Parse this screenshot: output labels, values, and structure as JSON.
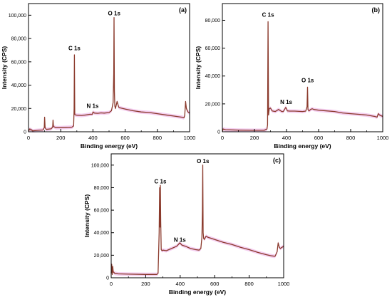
{
  "colors": {
    "line": "#8b3a2c",
    "shade": "#f3c9ee",
    "axis": "#000000"
  },
  "chart_data": [
    {
      "panel": "(a)",
      "type": "line",
      "xlabel": "Binding energy (eV)",
      "ylabel": "Intensity (CPS)",
      "xlim": [
        0,
        1000
      ],
      "ylim": [
        0,
        110000
      ],
      "xticks": [
        0,
        200,
        400,
        600,
        800,
        1000
      ],
      "yticks": [
        0,
        20000,
        40000,
        60000,
        80000,
        100000
      ],
      "ytick_labels": [
        "0",
        "20,000",
        "40,000",
        "60,000",
        "80,000",
        "100,000"
      ],
      "annotations": [
        {
          "text": "C 1s",
          "x": 285,
          "y": 68000
        },
        {
          "text": "N 1s",
          "x": 398,
          "y": 18500
        },
        {
          "text": "O 1s",
          "x": 532,
          "y": 98000
        }
      ],
      "series": [
        {
          "x": [
            0,
            5,
            8,
            12,
            15,
            20,
            25,
            40,
            60,
            90,
            98,
            100,
            103,
            110,
            140,
            150,
            152,
            155,
            170,
            200,
            250,
            270,
            280,
            283,
            285,
            287,
            290,
            300,
            330,
            360,
            380,
            397,
            400,
            410,
            430,
            450,
            470,
            500,
            515,
            525,
            529,
            531,
            533,
            536,
            540,
            550,
            560,
            570,
            600,
            650,
            700,
            750,
            800,
            850,
            900,
            950,
            965,
            970,
            975,
            980,
            990,
            1000
          ],
          "y": [
            500,
            1500,
            2500,
            2000,
            1200,
            1800,
            800,
            1000,
            1200,
            1500,
            3500,
            12500,
            3500,
            2000,
            2500,
            4000,
            10000,
            4500,
            3500,
            3500,
            3800,
            4000,
            5000,
            20000,
            66000,
            15000,
            14500,
            14200,
            14000,
            14500,
            15000,
            15000,
            17000,
            16000,
            15800,
            16200,
            16000,
            16500,
            18000,
            25000,
            50000,
            98000,
            35000,
            22000,
            20000,
            26000,
            21000,
            20500,
            19500,
            18000,
            17000,
            16500,
            15500,
            14500,
            13500,
            12500,
            12000,
            14000,
            26000,
            20000,
            17000,
            16000
          ]
        }
      ]
    },
    {
      "panel": "(b)",
      "type": "line",
      "xlabel": "Binding energy (eV)",
      "ylabel": "Intensity (CPS)",
      "xlim": [
        0,
        1000
      ],
      "ylim": [
        0,
        92000
      ],
      "xticks": [
        0,
        200,
        400,
        600,
        800,
        1000
      ],
      "yticks": [
        0,
        20000,
        40000,
        60000,
        80000
      ],
      "ytick_labels": [
        "0",
        "20,000",
        "40,000",
        "60,000",
        "80,000"
      ],
      "annotations": [
        {
          "text": "C 1s",
          "x": 285,
          "y": 81000
        },
        {
          "text": "N 1s",
          "x": 398,
          "y": 18500
        },
        {
          "text": "O 1s",
          "x": 532,
          "y": 34000
        }
      ],
      "series": [
        {
          "x": [
            0,
            5,
            20,
            100,
            200,
            260,
            278,
            282,
            285,
            288,
            292,
            300,
            310,
            330,
            350,
            370,
            380,
            395,
            400,
            405,
            420,
            450,
            480,
            500,
            520,
            528,
            531,
            534,
            540,
            550,
            560,
            570,
            600,
            650,
            700,
            750,
            800,
            850,
            900,
            950,
            965,
            972,
            980,
            990,
            1000
          ],
          "y": [
            0,
            2000,
            1500,
            1200,
            1000,
            1000,
            2000,
            5000,
            79000,
            12000,
            16500,
            17000,
            15000,
            14500,
            16000,
            14500,
            14500,
            17500,
            16500,
            15000,
            14800,
            14800,
            14600,
            14500,
            14800,
            18000,
            32000,
            16000,
            15000,
            16000,
            16500,
            16000,
            15500,
            15000,
            14500,
            13500,
            13000,
            12500,
            12000,
            11000,
            10500,
            13000,
            12000,
            11500,
            11000
          ]
        }
      ]
    },
    {
      "panel": "(c)",
      "type": "line",
      "xlabel": "Binding energy (eV)",
      "ylabel": "Intensity (CPS)",
      "xlim": [
        0,
        1000
      ],
      "ylim": [
        0,
        110000
      ],
      "xticks": [
        0,
        200,
        400,
        600,
        800,
        1000
      ],
      "yticks": [
        0,
        20000,
        40000,
        60000,
        80000,
        100000
      ],
      "ytick_labels": [
        "0",
        "20,000",
        "40,000",
        "60,000",
        "80,000",
        "100,000"
      ],
      "annotations": [
        {
          "text": "C 1s",
          "x": 285,
          "y": 82000
        },
        {
          "text": "N 1s",
          "x": 398,
          "y": 30000
        },
        {
          "text": "O 1s",
          "x": 532,
          "y": 100000
        }
      ],
      "series": [
        {
          "x": [
            0,
            3,
            6,
            9,
            12,
            15,
            20,
            40,
            100,
            200,
            250,
            265,
            272,
            278,
            281,
            283,
            285,
            287,
            290,
            295,
            300,
            320,
            350,
            380,
            398,
            410,
            430,
            460,
            490,
            510,
            520,
            526,
            529,
            531,
            533,
            536,
            540,
            550,
            560,
            580,
            600,
            650,
            700,
            750,
            800,
            850,
            900,
            930,
            950,
            962,
            968,
            975,
            980,
            990,
            1000
          ],
          "y": [
            4000,
            12000,
            3000,
            10000,
            5000,
            5000,
            4000,
            3500,
            3200,
            3000,
            3000,
            3000,
            4000,
            40000,
            80000,
            45000,
            82000,
            50000,
            25000,
            24000,
            24500,
            24000,
            26000,
            28000,
            31000,
            29000,
            28000,
            26000,
            25000,
            24500,
            26000,
            36000,
            60000,
            100000,
            40000,
            35000,
            34000,
            37000,
            36000,
            35000,
            34000,
            31500,
            29500,
            27000,
            25000,
            22500,
            20500,
            19500,
            19000,
            23000,
            31000,
            27000,
            26000,
            27000,
            28000
          ]
        }
      ]
    }
  ]
}
